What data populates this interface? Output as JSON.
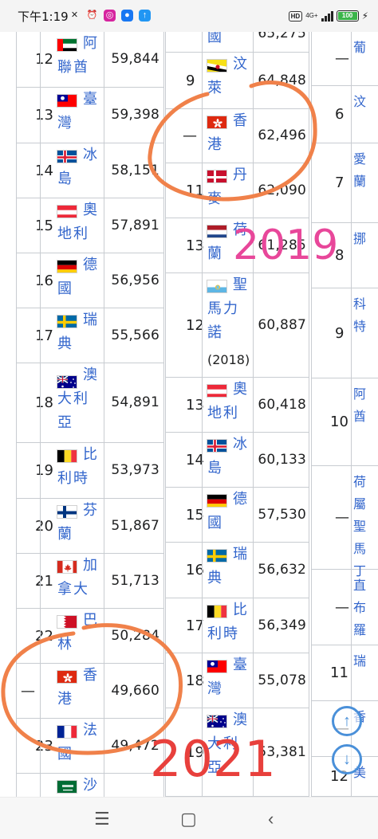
{
  "status_bar": {
    "time": "下午1:19",
    "network": "4G+",
    "hd_label": "HD",
    "battery": "100"
  },
  "table_2021": {
    "rows": [
      {
        "rank": "12",
        "name": "阿聯酋",
        "value": "59,844",
        "flag": "uae"
      },
      {
        "rank": "13",
        "name": "臺灣",
        "value": "59,398",
        "flag": "taiwan"
      },
      {
        "rank": "14",
        "name": "冰島",
        "value": "58,151",
        "flag": "iceland"
      },
      {
        "rank": "15",
        "name": "奧地利",
        "value": "57,891",
        "flag": "austria"
      },
      {
        "rank": "16",
        "name": "德國",
        "value": "56,956",
        "flag": "germany"
      },
      {
        "rank": "17",
        "name": "瑞典",
        "value": "55,566",
        "flag": "sweden"
      },
      {
        "rank": "18",
        "name": "澳大利亞",
        "value": "54,891",
        "flag": "australia"
      },
      {
        "rank": "19",
        "name": "比利時",
        "value": "53,973",
        "flag": "belgium"
      },
      {
        "rank": "20",
        "name": "芬蘭",
        "value": "51,867",
        "flag": "finland"
      },
      {
        "rank": "21",
        "name": "加拿大",
        "value": "51,713",
        "flag": "canada"
      },
      {
        "rank": "22",
        "name": "巴林",
        "value": "50,284",
        "flag": "bahrain"
      },
      {
        "rank": "—",
        "name": "香港",
        "value": "49,660",
        "flag": "hongkong"
      },
      {
        "rank": "23",
        "name": "法國",
        "value": "49,472",
        "flag": "france"
      },
      {
        "rank": "",
        "name": "沙",
        "value": "",
        "flag": "saudi"
      }
    ]
  },
  "table_2019": {
    "rows": [
      {
        "rank": "",
        "name": "國",
        "value": "65,275",
        "flag": ""
      },
      {
        "rank": "9",
        "name": "汶萊",
        "value": "64,848",
        "flag": "brunei"
      },
      {
        "rank": "—",
        "name": "香港",
        "value": "62,496",
        "flag": "hongkong"
      },
      {
        "rank": "11",
        "name": "丹麥",
        "value": "62,090",
        "flag": "denmark"
      },
      {
        "rank": "13",
        "name": "荷蘭",
        "value": "61,285",
        "flag": "netherlands"
      },
      {
        "rank": "12",
        "name": "聖馬力諾",
        "note": "(2018)",
        "value": "60,887",
        "flag": "sanmarino"
      },
      {
        "rank": "13",
        "name": "奧地利",
        "value": "60,418",
        "flag": "austria"
      },
      {
        "rank": "14",
        "name": "冰島",
        "value": "60,133",
        "flag": "iceland"
      },
      {
        "rank": "15",
        "name": "德國",
        "value": "57,530",
        "flag": "germany"
      },
      {
        "rank": "16",
        "name": "瑞典",
        "value": "56,632",
        "flag": "sweden"
      },
      {
        "rank": "17",
        "name": "比利時",
        "value": "56,349",
        "flag": "belgium"
      },
      {
        "rank": "18",
        "name": "臺灣",
        "value": "55,078",
        "flag": "taiwan"
      },
      {
        "rank": "19",
        "name": "澳大利亞",
        "value": "53,381",
        "flag": "australia"
      }
    ]
  },
  "table_third": {
    "rows": [
      {
        "rank": "—",
        "name": "葡"
      },
      {
        "rank": "6",
        "name": "汶"
      },
      {
        "rank": "7",
        "name": "愛蘭"
      },
      {
        "rank": "8",
        "name": "挪"
      },
      {
        "rank": "9",
        "name": "科特"
      },
      {
        "rank": "10",
        "name": "阿酋"
      },
      {
        "rank": "—",
        "name": "荷屬聖馬丁"
      },
      {
        "rank": "—",
        "name": "直布羅"
      },
      {
        "rank": "11",
        "name": "瑞"
      },
      {
        "rank": "—",
        "name": "香"
      },
      {
        "rank": "12",
        "name": "美"
      }
    ]
  },
  "annotations": {
    "label_2019": "2019",
    "label_2021": "2021",
    "color_2019": "#e8479a",
    "color_2021": "#e8403c",
    "circle_color": "#f0814a"
  }
}
